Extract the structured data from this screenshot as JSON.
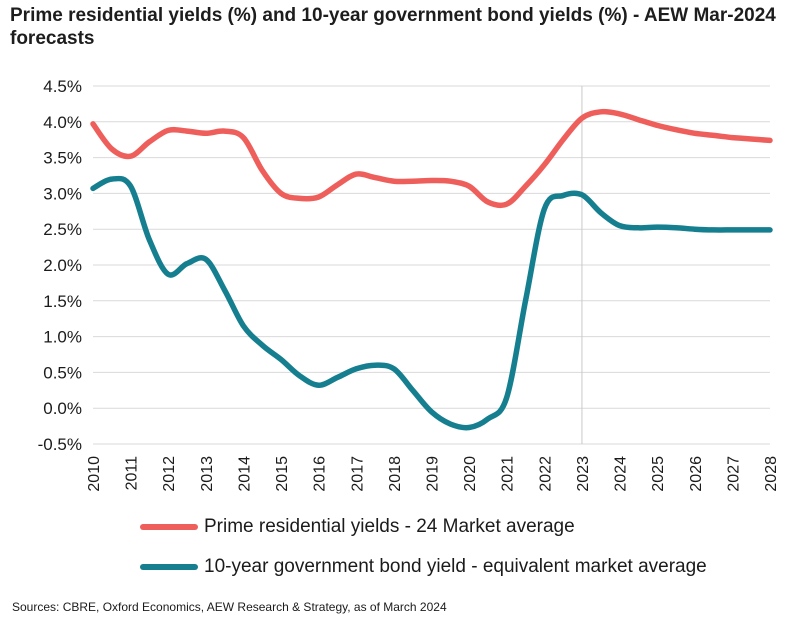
{
  "title": "Prime residential yields (%) and 10-year government bond yields (%) - AEW Mar-2024 forecasts",
  "source": "Sources: CBRE, Oxford Economics, AEW Research & Strategy, as of March 2024",
  "chart_data": {
    "type": "line",
    "title": "Prime residential yields (%) and 10-year government bond yields (%) - AEW Mar-2024 forecasts",
    "xlabel": "",
    "ylabel": "",
    "categories": [
      "2010",
      "2011",
      "2012",
      "2013",
      "2014",
      "2015",
      "2016",
      "2017",
      "2018",
      "2019",
      "2020",
      "2021",
      "2022",
      "2023",
      "2024",
      "2025",
      "2026",
      "2027",
      "2028"
    ],
    "y_ticks": [
      "4.5%",
      "4.0%",
      "3.5%",
      "3.0%",
      "2.5%",
      "2.0%",
      "1.5%",
      "1.0%",
      "0.5%",
      "0.0%",
      "-0.5%"
    ],
    "ylim": [
      -0.5,
      4.5
    ],
    "grid": "horizontal",
    "legend_position": "bottom",
    "forecast_marker_at": "2023",
    "x": [
      2010.0,
      2010.5,
      2011.0,
      2011.5,
      2012.0,
      2012.5,
      2013.0,
      2013.5,
      2014.0,
      2014.5,
      2015.0,
      2015.5,
      2016.0,
      2016.5,
      2017.0,
      2017.5,
      2018.0,
      2018.5,
      2019.0,
      2019.5,
      2020.0,
      2020.5,
      2021.0,
      2021.5,
      2022.0,
      2022.5,
      2023.0,
      2023.5,
      2024.0,
      2024.5,
      2025.0,
      2025.5,
      2026.0,
      2026.5,
      2027.0,
      2027.5,
      2028.0
    ],
    "series": [
      {
        "name": "Prime residential yields - 24 Market average",
        "color": "#ee5f5b",
        "values": [
          3.97,
          3.62,
          3.52,
          3.72,
          3.88,
          3.87,
          3.84,
          3.87,
          3.78,
          3.32,
          3.0,
          2.93,
          2.95,
          3.12,
          3.27,
          3.22,
          3.17,
          3.17,
          3.18,
          3.17,
          3.1,
          2.88,
          2.85,
          3.1,
          3.4,
          3.75,
          4.05,
          4.14,
          4.11,
          4.03,
          3.95,
          3.89,
          3.84,
          3.81,
          3.78,
          3.76,
          3.74
        ]
      },
      {
        "name": "10-year government bond yield - equivalent market average",
        "color": "#157f90",
        "values": [
          3.07,
          3.2,
          3.1,
          2.35,
          1.87,
          2.02,
          2.08,
          1.65,
          1.15,
          0.88,
          0.68,
          0.45,
          0.32,
          0.43,
          0.55,
          0.6,
          0.55,
          0.25,
          -0.05,
          -0.22,
          -0.27,
          -0.15,
          0.15,
          1.5,
          2.78,
          2.97,
          2.98,
          2.73,
          2.55,
          2.52,
          2.53,
          2.52,
          2.5,
          2.49,
          2.49,
          2.49,
          2.49
        ]
      }
    ]
  }
}
